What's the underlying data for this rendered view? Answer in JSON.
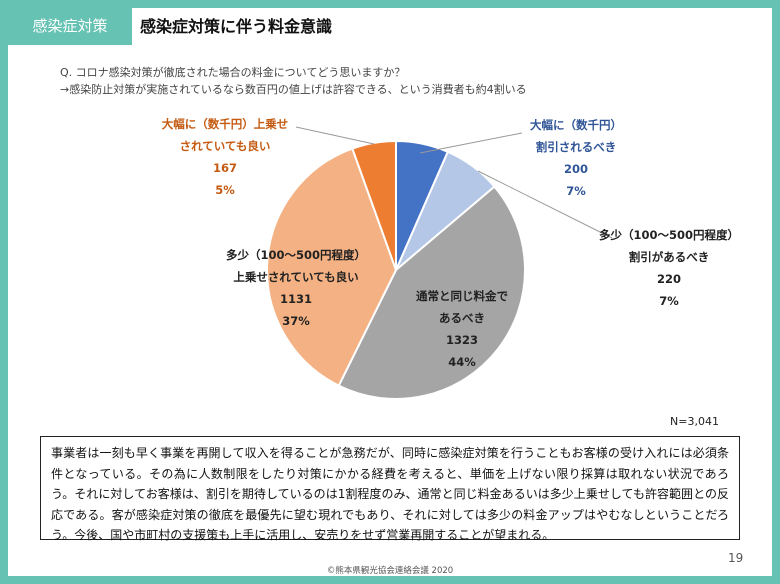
{
  "header": {
    "tag": "感染症対策",
    "title": "感染症対策に伴う料金意識"
  },
  "question": {
    "line1": "Q. コロナ感染対策が徹底された場合の料金についてどう思いますか？",
    "line2": "→感染防止対策が実施されているなら数百円の値上げは許容できる、という消費者も約4割いる"
  },
  "chart_data": {
    "type": "pie",
    "n_label": "N=3,041",
    "slices": [
      {
        "label_lines": [
          "大幅に（数千円）",
          "割引されるべき"
        ],
        "count": "200",
        "pct": "7%",
        "value": 200,
        "color": "#4472c4",
        "label_color": "#2f5597"
      },
      {
        "label_lines": [
          "多少（100～500円程度）",
          "割引があるべき"
        ],
        "count": "220",
        "pct": "7%",
        "value": 220,
        "color": "#b4c7e7",
        "label_color": "#222222"
      },
      {
        "label_lines": [
          "通常と同じ料金で",
          "あるべき"
        ],
        "count": "1323",
        "pct": "44%",
        "value": 1323,
        "color": "#a5a5a5",
        "label_color": "#222222"
      },
      {
        "label_lines": [
          "多少（100～500円程度）",
          "上乗せされていても良い"
        ],
        "count": "1131",
        "pct": "37%",
        "value": 1131,
        "color": "#f4b183",
        "label_color": "#222222"
      },
      {
        "label_lines": [
          "大幅に（数千円）上乗せ",
          "されていても良い"
        ],
        "count": "167",
        "pct": "5%",
        "value": 167,
        "color": "#ed7d31",
        "label_color": "#c55a11"
      }
    ]
  },
  "commentary": "事業者は一刻も早く事業を再開して収入を得ることが急務だが、同時に感染症対策を行うこともお客様の受け入れには必須条件となっている。その為に人数制限をしたり対策にかかる経費を考えると、単価を上げない限り採算は取れない状況であろう。それに対してお客様は、割引を期待しているのは1割程度のみ、通常と同じ料金あるいは多少上乗せしても許容範囲との反応である。客が感染症対策の徹底を最優先に望む現れでもあり、それに対しては多少の料金アップはやむなしということだろう。今後、国や市町村の支援策も上手に活用し、安売りをせず営業再開することが望まれる。",
  "page_number": "19",
  "copyright": "©熊本県観光協会連絡会議 2020"
}
